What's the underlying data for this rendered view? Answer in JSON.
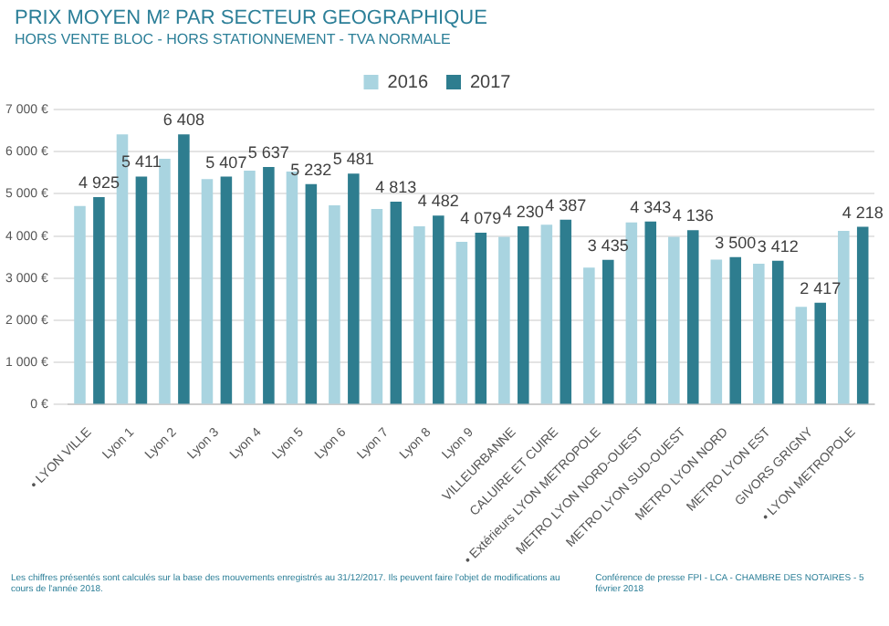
{
  "chart_data": {
    "type": "bar",
    "title": "PRIX MOYEN M² PAR SECTEUR GEOGRAPHIQUE",
    "subtitle": "HORS VENTE BLOC - HORS STATIONNEMENT - TVA NORMALE",
    "categories": [
      "• LYON VILLE",
      "Lyon 1",
      "Lyon 2",
      "Lyon 3",
      "Lyon 4",
      "Lyon 5",
      "Lyon 6",
      "Lyon 7",
      "Lyon 8",
      "Lyon 9",
      "VILLEURBANNE",
      "CALUIRE ET CUIRE",
      "• Extérieurs LYON METROPOLE",
      "METRO LYON NORD-OUEST",
      "METRO LYON SUD-OUEST",
      "METRO LYON NORD",
      "METRO LYON EST",
      "GIVORS GRIGNY",
      "• LYON METROPOLE"
    ],
    "series": [
      {
        "name": "2016",
        "color": "#a9d4e0",
        "values": [
          4710,
          6410,
          5830,
          5350,
          5550,
          5530,
          4730,
          4640,
          4230,
          3860,
          3980,
          4270,
          3250,
          4320,
          3980,
          3440,
          3340,
          2320,
          4120
        ]
      },
      {
        "name": "2017",
        "color": "#2e7d8f",
        "values": [
          4925,
          5411,
          6408,
          5407,
          5637,
          5232,
          5481,
          4813,
          4482,
          4079,
          4230,
          4387,
          3435,
          4343,
          4136,
          3500,
          3412,
          2417,
          4218
        ],
        "value_labels": [
          "4 925",
          "5 411",
          "6 408",
          "5 407",
          "5 637",
          "5 232",
          "5 481",
          "4 813",
          "4 482",
          "4 079",
          "4 230",
          "4 387",
          "3 435",
          "4 343",
          "4 136",
          "3 500",
          "3 412",
          "2 417",
          "4 218"
        ]
      }
    ],
    "ylim": [
      0,
      7000
    ],
    "yticks": [
      {
        "value": 0,
        "label": "0 €"
      },
      {
        "value": 1000,
        "label": "1 000 €"
      },
      {
        "value": 2000,
        "label": "2 000 €"
      },
      {
        "value": 3000,
        "label": "3 000 €"
      },
      {
        "value": 4000,
        "label": "4 000 €"
      },
      {
        "value": 5000,
        "label": "5 000 €"
      },
      {
        "value": 6000,
        "label": "6 000 €"
      },
      {
        "value": 7000,
        "label": "7 000 €"
      }
    ],
    "grid": "y",
    "legend": "top",
    "annotations": [
      "Les chiffres présentés sont calculés sur la base des mouvements enregistrés au 31/12/2017. Ils peuvent faire l'objet de modifications au cours de l'année 2018.",
      "Conférence de presse FPI - LCA - CHAMBRE DES NOTAIRES - 5 février 2018"
    ]
  }
}
